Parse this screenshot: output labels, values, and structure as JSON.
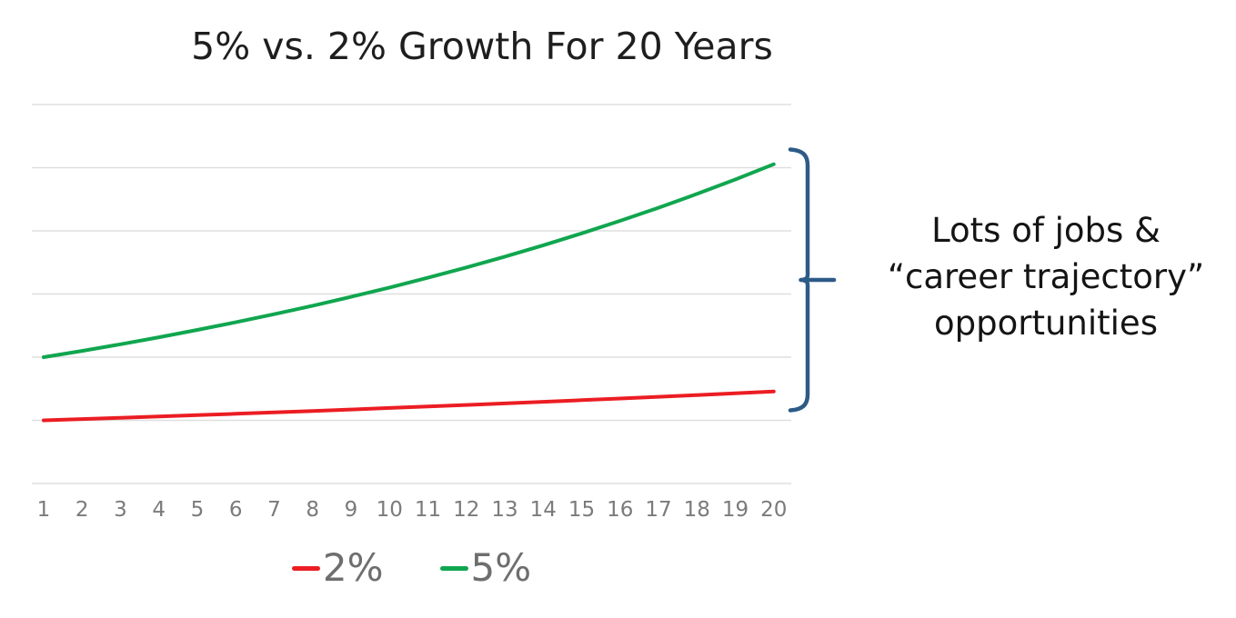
{
  "title": "5% vs. 2% Growth For 20 Years",
  "annotation": {
    "lines": [
      "Lots of jobs &",
      "“career trajectory”",
      "opportunities"
    ]
  },
  "legend": [
    {
      "label": "2%",
      "color": "#eb1d23"
    },
    {
      "label": "5%",
      "color": "#10a64f"
    }
  ],
  "colors": {
    "red": "#eb1d23",
    "green": "#10a64f",
    "bracket": "#2d5b87",
    "grid": "#dfdfdf",
    "ticks": "#7b7b7b",
    "title": "#1e1e1e",
    "legendtext": "#6e6e6e",
    "annotation": "#141414"
  },
  "chart_data": {
    "type": "line",
    "title": "5% vs. 2% Growth For 20 Years",
    "xlabel": "",
    "ylabel": "",
    "x": [
      1,
      2,
      3,
      4,
      5,
      6,
      7,
      8,
      9,
      10,
      11,
      12,
      13,
      14,
      15,
      16,
      17,
      18,
      19,
      20
    ],
    "series": [
      {
        "name": "2%",
        "color": "#eb1d23",
        "growth_rate_pct": 2,
        "start_value": 50,
        "values": [
          50,
          51,
          52.02,
          53.06,
          54.12,
          55.2,
          56.31,
          57.43,
          58.58,
          59.75,
          60.95,
          62.17,
          63.41,
          64.68,
          65.97,
          67.29,
          68.64,
          70.01,
          71.41,
          72.84
        ]
      },
      {
        "name": "5%",
        "color": "#10a64f",
        "growth_rate_pct": 5,
        "start_value": 100,
        "values": [
          100,
          105,
          110.25,
          115.76,
          121.55,
          127.63,
          134.01,
          140.71,
          147.75,
          155.13,
          162.89,
          171.03,
          179.59,
          188.56,
          197.99,
          207.89,
          218.29,
          229.2,
          240.66,
          252.7
        ]
      }
    ],
    "ylim": [
      0,
      300
    ],
    "gridline_step": 50,
    "grid": "horizontal-only, no y-axis labels shown",
    "legend_position": "bottom"
  }
}
